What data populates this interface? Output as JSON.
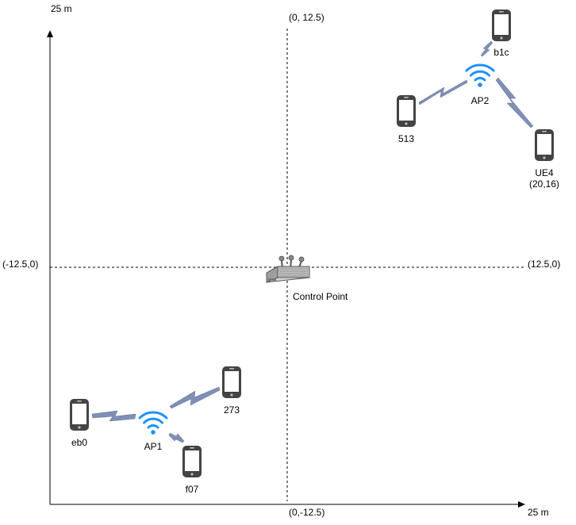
{
  "axes": {
    "y_max_label": "25 m",
    "x_max_label": "25 m",
    "top_label": "(0, 12.5)",
    "bottom_label": "(0,-12.5)",
    "left_label": "(-12.5,0)",
    "right_label": "(12.5,0)"
  },
  "control_point": {
    "label": "Control Point"
  },
  "access_points": [
    {
      "label": "AP1"
    },
    {
      "label": "AP2"
    }
  ],
  "devices": [
    {
      "label": "eb0"
    },
    {
      "label": "273"
    },
    {
      "label": "f07"
    },
    {
      "label": "b1c"
    },
    {
      "label": "513"
    },
    {
      "label": "UE4",
      "coords": "(20,16)"
    }
  ],
  "colors": {
    "wifi": "#1E90FF",
    "link": "#7F8FB5",
    "phone": "#444444",
    "axis": "#000000"
  },
  "icons": {
    "device": "smartphone-icon",
    "access_point": "wifi-icon",
    "link": "wireless-link-icon",
    "control_point": "router-icon"
  }
}
